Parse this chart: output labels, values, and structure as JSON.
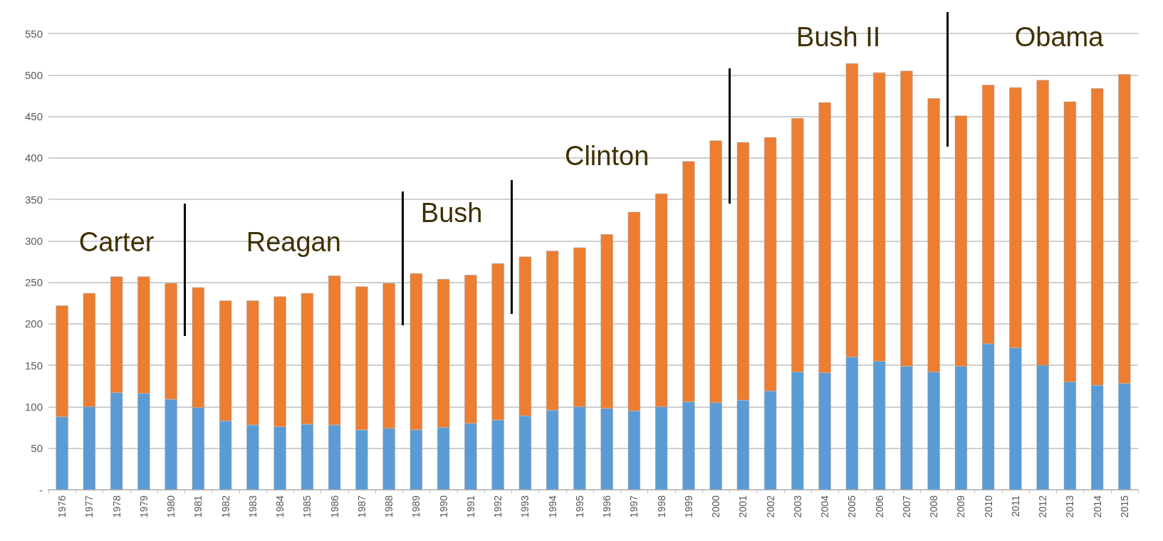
{
  "chart_data": {
    "type": "bar",
    "stacked": true,
    "categories": [
      "1976",
      "1977",
      "1978",
      "1979",
      "1980",
      "1981",
      "1982",
      "1983",
      "1984",
      "1985",
      "1986",
      "1987",
      "1988",
      "1989",
      "1990",
      "1991",
      "1992",
      "1993",
      "1994",
      "1995",
      "1996",
      "1997",
      "1998",
      "1999",
      "2000",
      "2001",
      "2002",
      "2003",
      "2004",
      "2005",
      "2006",
      "2007",
      "2008",
      "2009",
      "2010",
      "2011",
      "2012",
      "2013",
      "2014",
      "2015"
    ],
    "series": [
      {
        "color": "#5b9bd5",
        "values": [
          88,
          100,
          117,
          116,
          109,
          99,
          83,
          78,
          76,
          79,
          78,
          72,
          74,
          72,
          75,
          80,
          84,
          89,
          96,
          100,
          98,
          95,
          100,
          106,
          105,
          108,
          119,
          142,
          141,
          160,
          155,
          149,
          142,
          149,
          176,
          171,
          150,
          130,
          126,
          128
        ]
      },
      {
        "color": "#ed7d31",
        "values": [
          134,
          137,
          140,
          141,
          140,
          145,
          145,
          150,
          157,
          158,
          180,
          173,
          175,
          189,
          179,
          179,
          189,
          192,
          192,
          192,
          210,
          240,
          257,
          290,
          316,
          311,
          306,
          306,
          326,
          354,
          348,
          356,
          330,
          302,
          312,
          314,
          344,
          338,
          358,
          373
        ]
      }
    ],
    "ylim": [
      0,
      575
    ],
    "yticks": [
      {
        "value": 0,
        "label": "-"
      },
      50,
      100,
      150,
      200,
      250,
      300,
      350,
      400,
      450,
      500,
      550
    ],
    "grid": "y",
    "annotations": [
      "Carter",
      "Reagan",
      "Bush",
      "Clinton",
      "Bush II",
      "Obama"
    ]
  }
}
